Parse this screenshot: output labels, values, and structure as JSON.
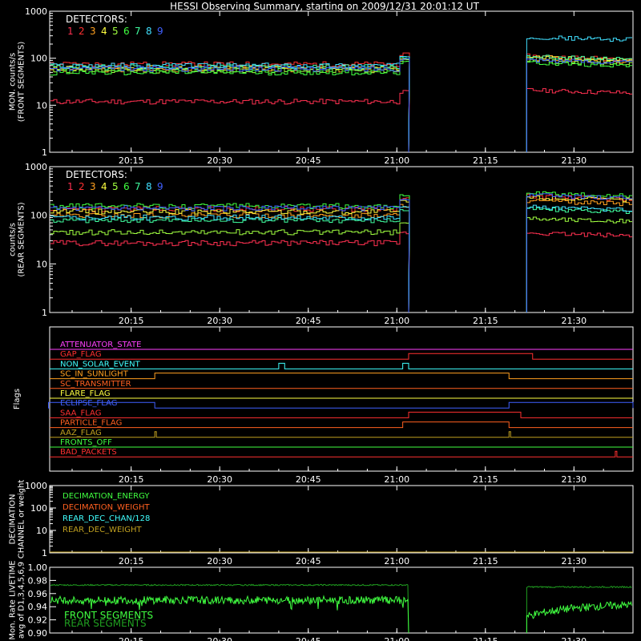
{
  "title": "HESSI Observing Summary, starting on 2009/12/31 20:01:12 UT",
  "time_ticks": [
    "20:15",
    "20:30",
    "20:45",
    "21:00",
    "21:15",
    "21:30"
  ],
  "detector_colors": [
    "#ff3050",
    "#ff3030",
    "#ffa020",
    "#ffff40",
    "#a0ff40",
    "#40ff40",
    "#40ffa0",
    "#40c0ff",
    "#4060ff"
  ],
  "chart_data": [
    {
      "type": "line",
      "panel": "front",
      "ylabel": "MON. counts/s\n(FRONT SEGMENTS)",
      "yscale": "log",
      "ylim": [
        1,
        1000
      ],
      "yticks": [
        "1",
        "10",
        "100",
        "1000"
      ],
      "legend_title": "DETECTORS:",
      "legend_labels": [
        "1",
        "2",
        "3",
        "4",
        "5",
        "6",
        "7",
        "8",
        "9"
      ],
      "gap": [
        "21:02",
        "21:22"
      ],
      "series": [
        {
          "name": "1",
          "color": "#ff3050",
          "before": 12,
          "after": 17
        },
        {
          "name": "2",
          "color": "#ff3030",
          "before": 75,
          "after": 90
        },
        {
          "name": "3",
          "color": "#ffa020",
          "before": 58,
          "after": 80
        },
        {
          "name": "4",
          "color": "#ffff40",
          "before": 62,
          "after": 85
        },
        {
          "name": "5",
          "color": "#a0ff40",
          "before": 55,
          "after": 72
        },
        {
          "name": "6",
          "color": "#40ff40",
          "before": 50,
          "after": 65
        },
        {
          "name": "7",
          "color": "#40ffa0",
          "before": 65,
          "after": 88
        },
        {
          "name": "8",
          "color": "#40e0ff",
          "before": 70,
          "after": 230
        },
        {
          "name": "9",
          "color": "#4060ff",
          "before": 60,
          "after": 75
        }
      ]
    },
    {
      "type": "line",
      "panel": "rear",
      "ylabel": "counts/s\n(REAR SEGMENTS)",
      "yscale": "log",
      "ylim": [
        1,
        1000
      ],
      "yticks": [
        "1",
        "10",
        "100",
        "1000"
      ],
      "legend_title": "DETECTORS:",
      "legend_labels": [
        "1",
        "2",
        "3",
        "4",
        "5",
        "6",
        "7",
        "8",
        "9"
      ],
      "gap": [
        "21:02",
        "21:22"
      ],
      "series": [
        {
          "name": "1",
          "color": "#ff3050",
          "before": 27,
          "after": 35
        },
        {
          "name": "2",
          "color": "#ff3030",
          "before": 135,
          "after": 200
        },
        {
          "name": "3",
          "color": "#ffa020",
          "before": 100,
          "after": 160
        },
        {
          "name": "4",
          "color": "#ffff40",
          "before": 120,
          "after": 190
        },
        {
          "name": "5",
          "color": "#a0ff40",
          "before": 45,
          "after": 70
        },
        {
          "name": "6",
          "color": "#40ff40",
          "before": 155,
          "after": 230
        },
        {
          "name": "7",
          "color": "#40ffa0",
          "before": 80,
          "after": 110
        },
        {
          "name": "8",
          "color": "#40e0ff",
          "before": 90,
          "after": 120
        },
        {
          "name": "9",
          "color": "#4060ff",
          "before": 140,
          "after": 210
        }
      ]
    },
    {
      "type": "line",
      "panel": "flags",
      "ylabel": "Flags",
      "flags": [
        {
          "name": "ATTENUATOR_STATE",
          "color": "#ff40ff",
          "steps": []
        },
        {
          "name": "GAP_FLAG",
          "color": "#ff3030",
          "steps": [
            [
              "21:02",
              "21:23"
            ]
          ]
        },
        {
          "name": "NON_SOLAR_EVENT",
          "color": "#40ffff",
          "steps": [
            [
              "20:40",
              "20:41"
            ],
            [
              "21:01",
              "21:02"
            ]
          ]
        },
        {
          "name": "SC_IN_SUNLIGHT",
          "color": "#ffa020",
          "steps": [
            [
              "20:19",
              "21:19"
            ]
          ]
        },
        {
          "name": "SC_TRANSMITTER",
          "color": "#ff6020",
          "steps": []
        },
        {
          "name": "FLARE_FLAG",
          "color": "#ffff40",
          "steps": []
        },
        {
          "name": "ECLIPSE_FLAG",
          "color": "#4060ff",
          "steps": [
            [
              "20:01",
              "20:19"
            ],
            [
              "21:19",
              "21:40"
            ]
          ]
        },
        {
          "name": "SAA_FLAG",
          "color": "#ff3030",
          "steps": [
            [
              "21:02",
              "21:21"
            ]
          ]
        },
        {
          "name": "PARTICLE_FLAG",
          "color": "#ff6020",
          "steps": [
            [
              "21:01",
              "21:19"
            ]
          ]
        },
        {
          "name": "AAZ_FLAG",
          "color": "#c0a020",
          "steps": [
            [
              "20:19",
              "20:19"
            ],
            [
              "21:19",
              "21:19"
            ]
          ]
        },
        {
          "name": "FRONTS_OFF",
          "color": "#40ff40",
          "steps": []
        },
        {
          "name": "BAD_PACKETS",
          "color": "#ff3030",
          "steps": [
            [
              "21:37",
              "21:37"
            ]
          ]
        }
      ]
    },
    {
      "type": "line",
      "panel": "decimation",
      "ylabel": "DECIMATION\nCHANNEL or weight",
      "yscale": "log",
      "ylim": [
        1,
        1000
      ],
      "yticks": [
        "1",
        "10",
        "100",
        "1000"
      ],
      "series": [
        {
          "name": "DECIMATION_ENERGY",
          "color": "#40ff40"
        },
        {
          "name": "DECIMATION_WEIGHT",
          "color": "#ff6020"
        },
        {
          "name": "REAR_DEC_CHAN/128",
          "color": "#40ffff"
        },
        {
          "name": "REAR_DEC_WEIGHT",
          "color": "#c0a020"
        }
      ]
    },
    {
      "type": "line",
      "panel": "livetime",
      "ylabel": "Mon. Rate LIVETIME\navg of D1,3,4,5,6,9",
      "ylim": [
        0.9,
        1.0
      ],
      "yticks": [
        "0.90",
        "0.92",
        "0.94",
        "0.96",
        "0.98",
        "1.00"
      ],
      "series": [
        {
          "name": "FRONT SEGMENTS",
          "color": "#40ff40",
          "before": 0.95,
          "after": 0.945
        },
        {
          "name": "REAR SEGMENTS",
          "color": "#20a020",
          "before": 0.973,
          "after": 0.97
        }
      ]
    }
  ]
}
